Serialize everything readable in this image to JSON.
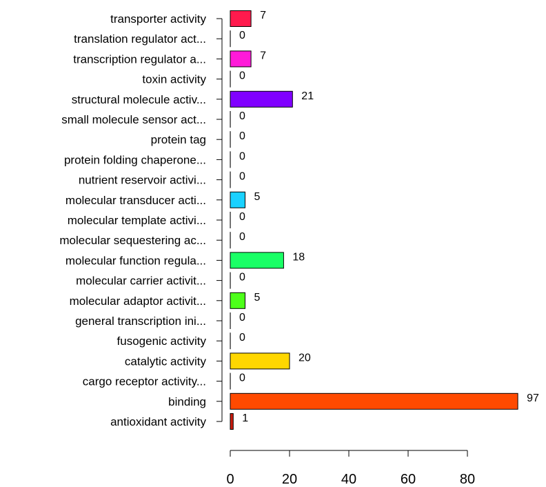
{
  "chart_data": {
    "type": "bar",
    "orientation": "horizontal",
    "title": "",
    "xlabel": "",
    "ylabel": "",
    "xlim": [
      0,
      97
    ],
    "x_ticks": [
      0,
      20,
      40,
      60,
      80
    ],
    "grid": false,
    "categories": [
      "antioxidant activity",
      "binding",
      "cargo receptor activity...",
      "catalytic activity",
      "fusogenic activity",
      "general transcription ini...",
      "molecular adaptor activit...",
      "molecular carrier activit...",
      "molecular function regula...",
      "molecular sequestering ac...",
      "molecular template activi...",
      "molecular transducer acti...",
      "nutrient reservoir activi...",
      "protein folding chaperone...",
      "protein tag",
      "small molecule sensor act...",
      "structural molecule activ...",
      "toxin activity",
      "transcription regulator a...",
      "translation regulator act...",
      "transporter activity"
    ],
    "values": [
      1,
      97,
      0,
      20,
      0,
      0,
      5,
      0,
      18,
      0,
      0,
      5,
      0,
      0,
      0,
      0,
      21,
      0,
      7,
      0,
      7
    ],
    "colors": [
      "#cc1b0e",
      "#ff4a00",
      "#ff9900",
      "#ffd700",
      "#cfff00",
      "#9cff00",
      "#4dff1a",
      "#1aff2e",
      "#1aff66",
      "#00ff99",
      "#00ffcc",
      "#1ad1ff",
      "#0099ff",
      "#0066ff",
      "#0033ff",
      "#1a00ff",
      "#8000ff",
      "#b300ff",
      "#ff1ad9",
      "#ff00a6",
      "#ff1a4d"
    ]
  }
}
